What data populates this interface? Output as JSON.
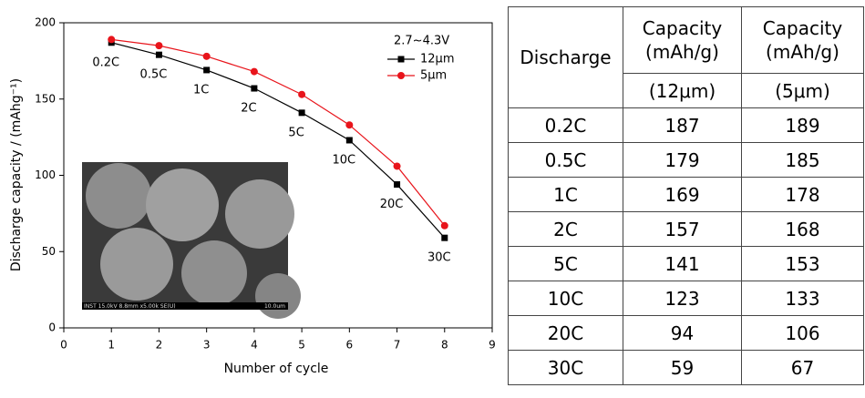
{
  "chart_data": {
    "type": "line",
    "x_label": "Number of cycle",
    "y_label": "Discharge capacity / (mAhg⁻¹)",
    "x": [
      1,
      2,
      3,
      4,
      5,
      6,
      7,
      8
    ],
    "series": [
      {
        "name": "12μm",
        "color": "#000000",
        "marker": "square",
        "values": [
          187,
          179,
          169,
          157,
          141,
          123,
          94,
          59
        ]
      },
      {
        "name": "5μm",
        "color": "#e8141b",
        "marker": "circle",
        "values": [
          189,
          185,
          178,
          168,
          153,
          133,
          106,
          67
        ]
      }
    ],
    "annotations": [
      "0.2C",
      "0.5C",
      "1C",
      "2C",
      "5C",
      "10C",
      "20C",
      "30C"
    ],
    "legend_title": "2.7~4.3V",
    "legend": "upper right",
    "inset_caption": [
      "INST 15.0kV 8.8mm x5.00k SE(U)",
      "10.0um"
    ],
    "xlim": [
      0,
      9
    ],
    "xticks": [
      0,
      1,
      2,
      3,
      4,
      5,
      6,
      7,
      8,
      9
    ],
    "ylim": [
      0,
      200
    ],
    "yticks": [
      0,
      50,
      100,
      150,
      200
    ]
  },
  "table": {
    "header": [
      "Discharge",
      "Capacity (mAh/g)",
      "Capacity (mAh/g)"
    ],
    "subheader": [
      "(12μm)",
      "(5μm)"
    ],
    "rows": [
      [
        "0.2C",
        "187",
        "189"
      ],
      [
        "0.5C",
        "179",
        "185"
      ],
      [
        "1C",
        "169",
        "178"
      ],
      [
        "2C",
        "157",
        "168"
      ],
      [
        "5C",
        "141",
        "153"
      ],
      [
        "10C",
        "123",
        "133"
      ],
      [
        "20C",
        "94",
        "106"
      ],
      [
        "30C",
        "59",
        "67"
      ]
    ]
  }
}
